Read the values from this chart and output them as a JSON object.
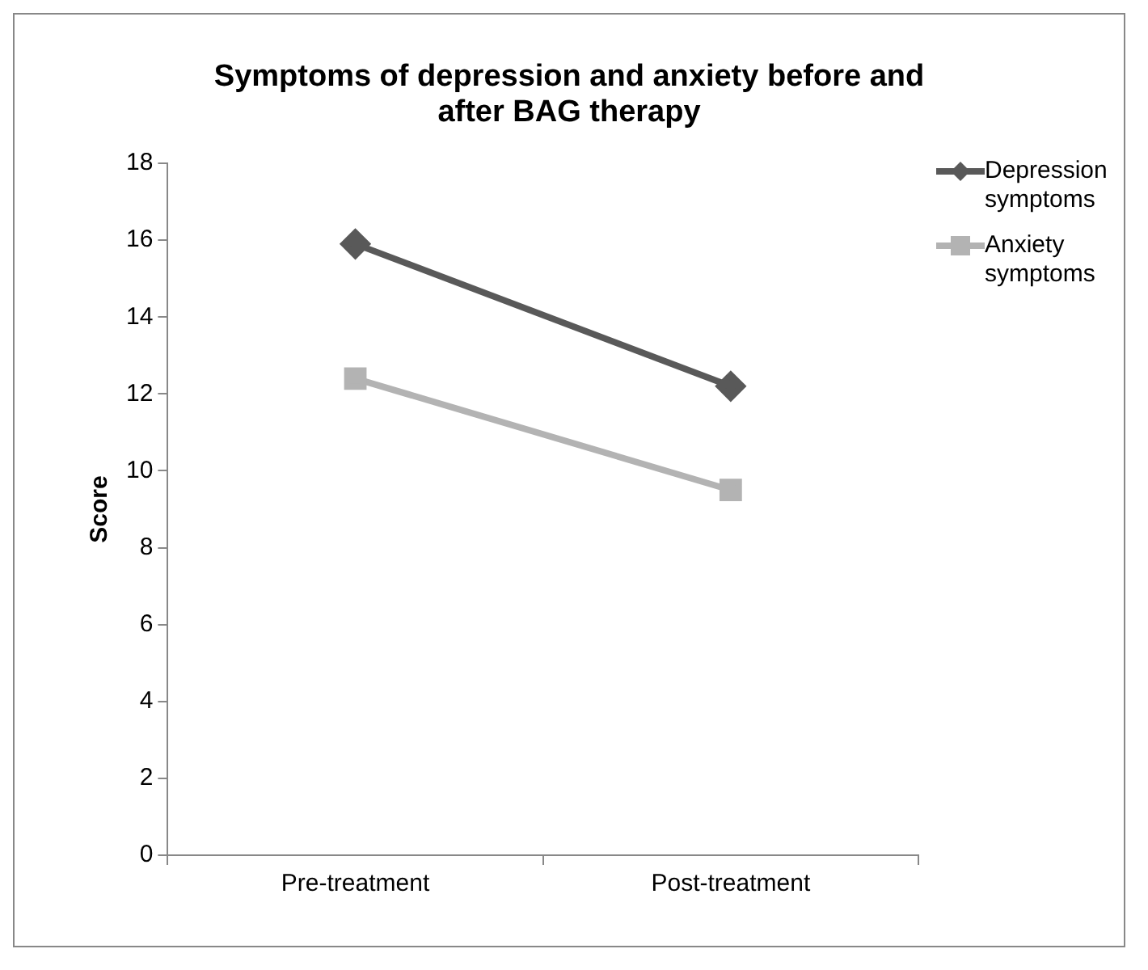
{
  "chart_data": {
    "type": "line",
    "title": "Symptoms of depression and anxiety before and after BAG therapy",
    "ylabel": "Score",
    "categories": [
      "Pre-treatment",
      "Post-treatment"
    ],
    "series": [
      {
        "name": "Depression symptoms",
        "color": "#595959",
        "values": [
          15.9,
          12.2
        ],
        "marker": "diamond"
      },
      {
        "name": "Anxiety symptoms",
        "color": "#b3b3b3",
        "values": [
          12.4,
          9.5
        ],
        "marker": "square"
      }
    ],
    "ylim": [
      0,
      18
    ],
    "yticks": [
      0,
      2,
      4,
      6,
      8,
      10,
      12,
      14,
      16,
      18
    ],
    "grid": false,
    "legend": "right",
    "line_style": "solid"
  }
}
